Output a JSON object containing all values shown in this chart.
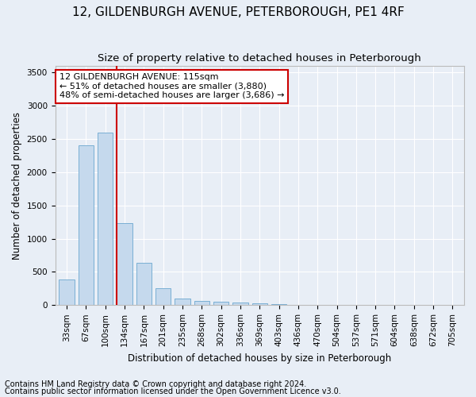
{
  "title": "12, GILDENBURGH AVENUE, PETERBOROUGH, PE1 4RF",
  "subtitle": "Size of property relative to detached houses in Peterborough",
  "xlabel": "Distribution of detached houses by size in Peterborough",
  "ylabel": "Number of detached properties",
  "footnote1": "Contains HM Land Registry data © Crown copyright and database right 2024.",
  "footnote2": "Contains public sector information licensed under the Open Government Licence v3.0.",
  "categories": [
    "33sqm",
    "67sqm",
    "100sqm",
    "134sqm",
    "167sqm",
    "201sqm",
    "235sqm",
    "268sqm",
    "302sqm",
    "336sqm",
    "369sqm",
    "403sqm",
    "436sqm",
    "470sqm",
    "504sqm",
    "537sqm",
    "571sqm",
    "604sqm",
    "638sqm",
    "672sqm",
    "705sqm"
  ],
  "values": [
    390,
    2400,
    2600,
    1240,
    640,
    260,
    100,
    60,
    55,
    45,
    30,
    20,
    0,
    0,
    0,
    0,
    0,
    0,
    0,
    0,
    0
  ],
  "bar_color": "#c5d9ed",
  "bar_edge_color": "#7aafd4",
  "vline_color": "#cc0000",
  "vline_x_index": 2.6,
  "annotation_text": "12 GILDENBURGH AVENUE: 115sqm\n← 51% of detached houses are smaller (3,880)\n48% of semi-detached houses are larger (3,686) →",
  "annotation_box_facecolor": "#ffffff",
  "annotation_box_edgecolor": "#cc0000",
  "ylim": [
    0,
    3600
  ],
  "yticks": [
    0,
    500,
    1000,
    1500,
    2000,
    2500,
    3000,
    3500
  ],
  "bg_color": "#e8eef6",
  "plot_bg_color": "#e8eef6",
  "grid_color": "#ffffff",
  "title_fontsize": 11,
  "subtitle_fontsize": 9.5,
  "axis_label_fontsize": 8.5,
  "tick_fontsize": 7.5,
  "annotation_fontsize": 8,
  "footnote_fontsize": 7
}
